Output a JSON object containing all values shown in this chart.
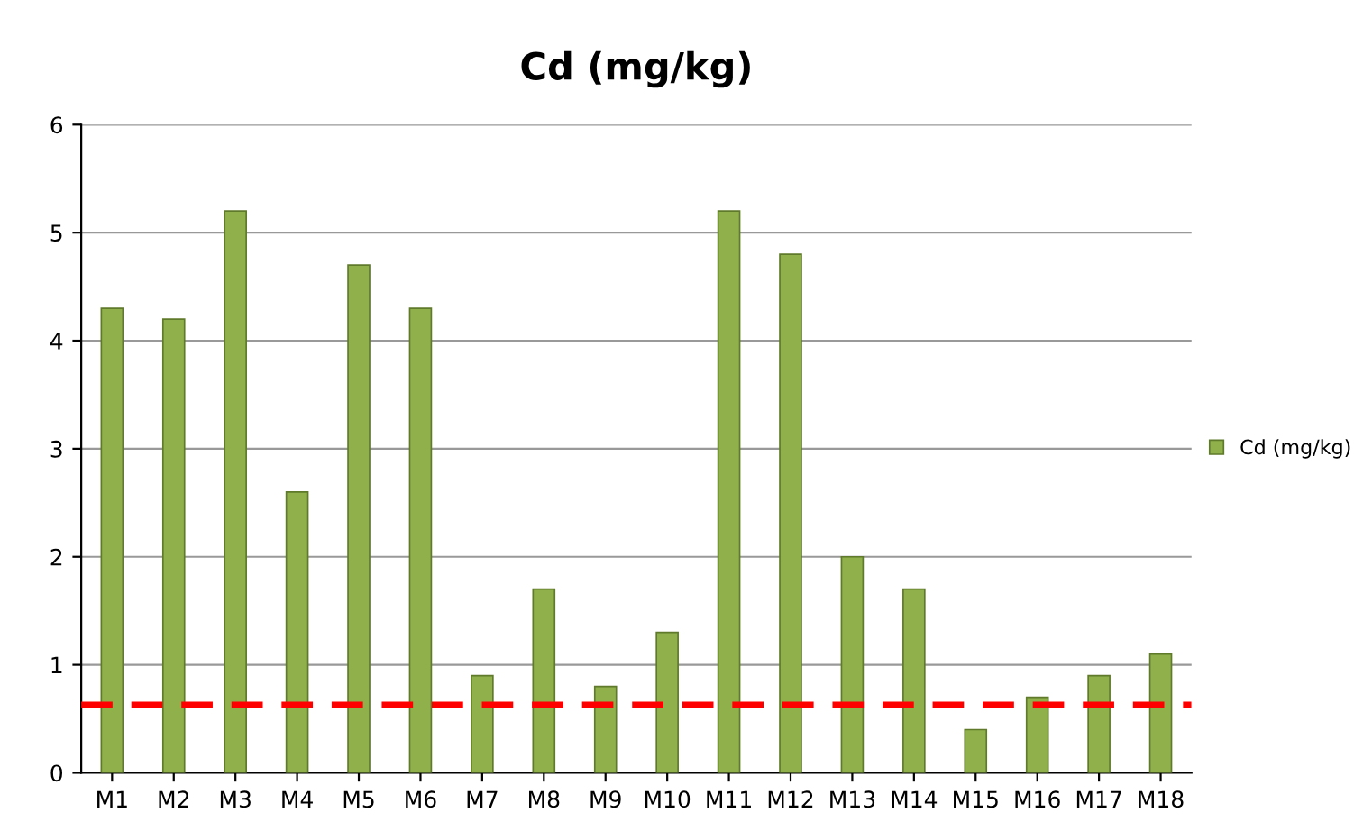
{
  "chart_data": {
    "type": "bar",
    "title": "Cd (mg/kg)",
    "categories": [
      "M1",
      "M2",
      "M3",
      "M4",
      "M5",
      "M6",
      "M7",
      "M8",
      "M9",
      "M10",
      "M11",
      "M12",
      "M13",
      "M14",
      "M15",
      "M16",
      "M17",
      "M18"
    ],
    "series": [
      {
        "name": "Cd (mg/kg)",
        "color": "#8fb04a",
        "values": [
          4.3,
          4.2,
          5.2,
          2.6,
          4.7,
          4.3,
          0.9,
          1.7,
          0.8,
          1.3,
          5.2,
          4.8,
          2.0,
          1.7,
          0.4,
          0.7,
          0.9,
          1.1
        ]
      }
    ],
    "ylim": [
      0,
      6
    ],
    "yticks": [
      0,
      1,
      2,
      3,
      4,
      5,
      6
    ],
    "grid": "y",
    "legend": "right",
    "ref_lines": [
      {
        "axis": "y",
        "value": 0.63,
        "color": "#ff0000",
        "line_style": "dashed"
      }
    ]
  }
}
